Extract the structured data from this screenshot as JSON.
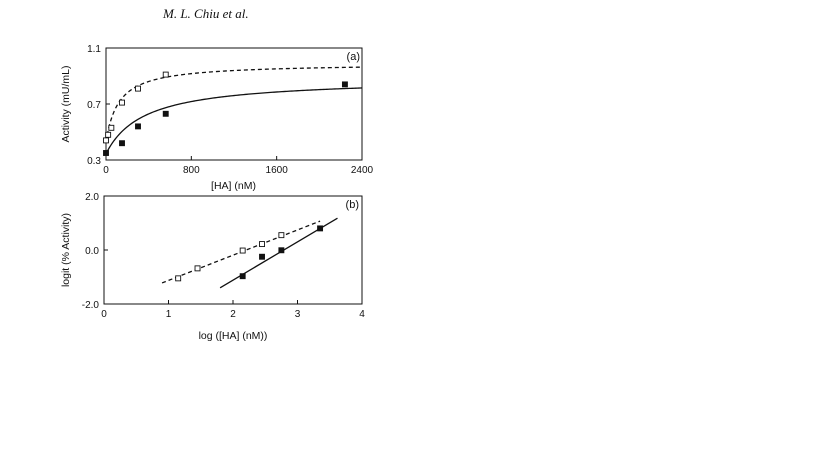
{
  "header": {
    "running_head": "M. L. Chiu et al."
  },
  "chart_data": [
    {
      "type": "scatter",
      "panel_label": "(a)",
      "xlabel": "[HA] (nM)",
      "ylabel": "Activity (mU/mL)",
      "xlim": [
        0,
        2400
      ],
      "ylim": [
        0.3,
        1.1
      ],
      "xticks": [
        "0",
        "800",
        "1600",
        "2400"
      ],
      "yticks": [
        "0.3",
        "0.7",
        "1.1"
      ],
      "grid": false,
      "series": [
        {
          "marker": "open-square",
          "line": "dashed",
          "points": [
            [
              0,
              0.44
            ],
            [
              20,
              0.48
            ],
            [
              50,
              0.53
            ],
            [
              150,
              0.71
            ],
            [
              300,
              0.81
            ],
            [
              560,
              0.91
            ]
          ],
          "fit": {
            "model": "saturation",
            "y0": 0.43,
            "ymax": 0.99,
            "k": 120
          }
        },
        {
          "marker": "filled-square",
          "line": "solid",
          "points": [
            [
              0,
              0.35
            ],
            [
              150,
              0.42
            ],
            [
              300,
              0.54
            ],
            [
              560,
              0.63
            ],
            [
              2240,
              0.84
            ]
          ],
          "fit": {
            "model": "saturation",
            "y0": 0.345,
            "ymax": 0.885,
            "k": 360
          }
        }
      ]
    },
    {
      "type": "scatter",
      "panel_label": "(b)",
      "xlabel": "log ([HA] (nM))",
      "ylabel": "logit (% Activity)",
      "xlim": [
        0,
        4
      ],
      "ylim": [
        -2.0,
        2.0
      ],
      "xticks": [
        "0",
        "1",
        "2",
        "3",
        "4"
      ],
      "yticks": [
        "-2.0",
        "0.0",
        "2.0"
      ],
      "grid": false,
      "series": [
        {
          "marker": "open-square",
          "line": "dashed",
          "points": [
            [
              1.15,
              -1.05
            ],
            [
              1.45,
              -0.68
            ],
            [
              2.15,
              -0.02
            ],
            [
              2.45,
              0.22
            ],
            [
              2.75,
              0.55
            ]
          ],
          "fit_line": [
            [
              0.9,
              -1.22
            ],
            [
              3.35,
              1.07
            ]
          ]
        },
        {
          "marker": "filled-square",
          "line": "solid",
          "points": [
            [
              2.15,
              -0.97
            ],
            [
              2.45,
              -0.25
            ],
            [
              2.75,
              -0.01
            ],
            [
              3.35,
              0.8
            ]
          ],
          "fit_line": [
            [
              1.8,
              -1.4
            ],
            [
              3.62,
              1.18
            ]
          ]
        }
      ]
    }
  ]
}
